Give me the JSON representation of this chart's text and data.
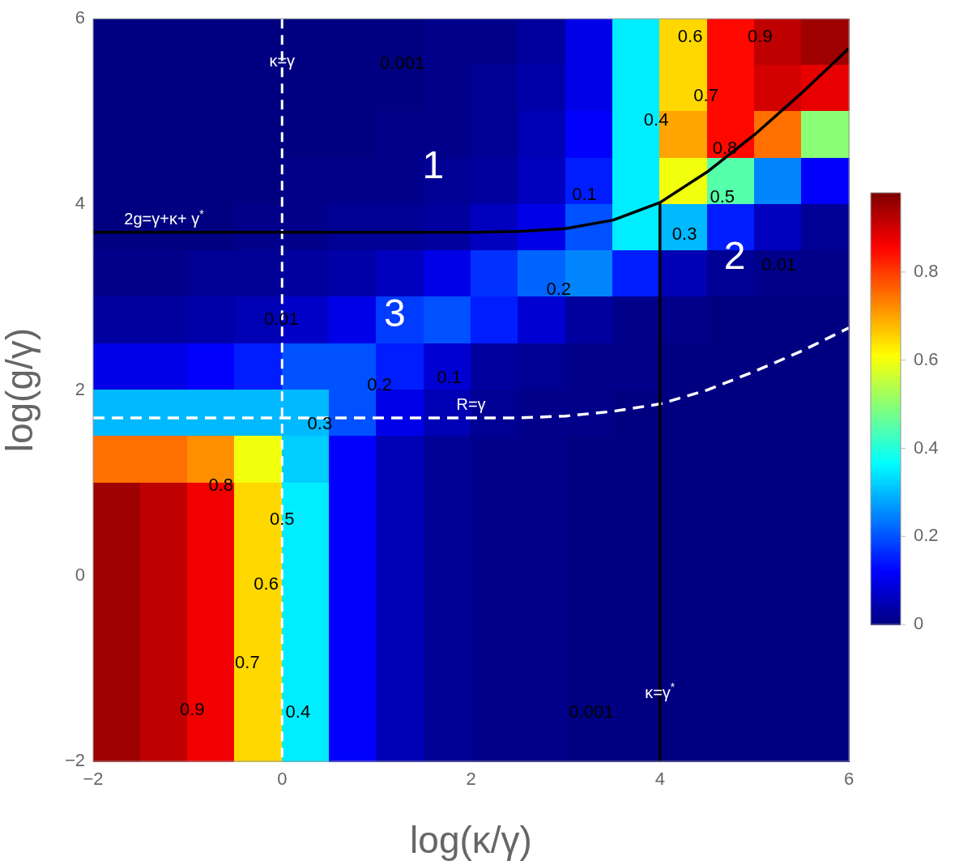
{
  "chart_data": {
    "type": "heatmap",
    "xlabel": "log(κ/γ)",
    "ylabel": "log(g/γ)",
    "x": [
      -1.75,
      -1.25,
      -0.75,
      -0.25,
      0.25,
      0.75,
      1.25,
      1.75,
      2.25,
      2.75,
      3.25,
      3.75,
      4.25,
      4.75,
      5.25,
      5.75
    ],
    "y": [
      5.75,
      5.25,
      4.75,
      4.25,
      3.75,
      3.25,
      2.75,
      2.25,
      1.75,
      1.25,
      0.75,
      0.25,
      -0.25,
      -0.75,
      -1.25,
      -1.75
    ],
    "xlim": [
      -2,
      6
    ],
    "xticks": [
      -2,
      0,
      2,
      4,
      6
    ],
    "ylim": [
      -2,
      6
    ],
    "yticks": [
      -2,
      0,
      2,
      4,
      6
    ],
    "clim": [
      0,
      0.98
    ],
    "cticks": [
      0,
      0.2,
      0.4,
      0.6,
      0.8
    ],
    "cells": [
      [
        0,
        0,
        0,
        0,
        0,
        0,
        0,
        0.01,
        0.01,
        0.03,
        0.1,
        0.35,
        0.65,
        0.85,
        0.92,
        0.95
      ],
      [
        0,
        0,
        0,
        0,
        0,
        0,
        0,
        0.01,
        0.02,
        0.04,
        0.1,
        0.35,
        0.65,
        0.85,
        0.9,
        0.88
      ],
      [
        0,
        0,
        0,
        0,
        0,
        0,
        0.01,
        0.01,
        0.02,
        0.05,
        0.12,
        0.35,
        0.7,
        0.85,
        0.75,
        0.5
      ],
      [
        0,
        0,
        0,
        0,
        0.01,
        0.01,
        0.01,
        0.02,
        0.03,
        0.06,
        0.15,
        0.35,
        0.6,
        0.45,
        0.25,
        0.12
      ],
      [
        0,
        0,
        0,
        0.01,
        0.01,
        0.02,
        0.02,
        0.03,
        0.06,
        0.1,
        0.2,
        0.35,
        0.3,
        0.15,
        0.06,
        0.02
      ],
      [
        0.01,
        0.01,
        0.02,
        0.02,
        0.03,
        0.04,
        0.06,
        0.1,
        0.17,
        0.22,
        0.25,
        0.15,
        0.05,
        0.02,
        0.01,
        0.01
      ],
      [
        0.03,
        0.03,
        0.04,
        0.05,
        0.07,
        0.1,
        0.18,
        0.2,
        0.15,
        0.08,
        0.03,
        0.01,
        0.01,
        0,
        0,
        0
      ],
      [
        0.1,
        0.1,
        0.12,
        0.15,
        0.2,
        0.2,
        0.15,
        0.08,
        0.03,
        0.02,
        0.01,
        0.01,
        0,
        0,
        0,
        0
      ],
      [
        0.3,
        0.3,
        0.3,
        0.3,
        0.3,
        0.2,
        0.1,
        0.05,
        0.02,
        0.01,
        0.01,
        0,
        0,
        0,
        0,
        0
      ],
      [
        0.75,
        0.75,
        0.72,
        0.6,
        0.32,
        0.12,
        0.05,
        0.02,
        0.01,
        0.01,
        0,
        0,
        0,
        0,
        0,
        0
      ],
      [
        0.95,
        0.92,
        0.87,
        0.65,
        0.35,
        0.12,
        0.05,
        0.02,
        0.01,
        0.01,
        0,
        0,
        0,
        0,
        0,
        0
      ],
      [
        0.95,
        0.92,
        0.87,
        0.65,
        0.35,
        0.12,
        0.05,
        0.02,
        0.01,
        0.01,
        0,
        0,
        0,
        0,
        0,
        0
      ],
      [
        0.95,
        0.92,
        0.87,
        0.65,
        0.35,
        0.12,
        0.05,
        0.02,
        0.01,
        0.01,
        0,
        0,
        0,
        0,
        0,
        0
      ],
      [
        0.95,
        0.92,
        0.87,
        0.65,
        0.35,
        0.12,
        0.05,
        0.02,
        0.01,
        0.01,
        0,
        0,
        0,
        0,
        0,
        0
      ],
      [
        0.95,
        0.92,
        0.87,
        0.65,
        0.35,
        0.12,
        0.05,
        0.02,
        0.01,
        0.01,
        0,
        0,
        0,
        0,
        0,
        0
      ],
      [
        0.95,
        0.92,
        0.87,
        0.65,
        0.35,
        0.12,
        0.05,
        0.02,
        0.01,
        0.01,
        0,
        0,
        0,
        0,
        0,
        0
      ]
    ],
    "series": [
      {
        "type": "line",
        "color": "#000000",
        "line_style": "solid",
        "x": [
          -2,
          -1.25,
          1,
          2,
          2.5,
          3,
          3.5,
          4,
          4.5,
          5,
          5.5,
          6
        ],
        "values": [
          3.7,
          3.7,
          3.7,
          3.7,
          3.71,
          3.74,
          3.83,
          4.02,
          4.35,
          4.75,
          5.2,
          5.68
        ]
      },
      {
        "type": "line",
        "color": "#000000",
        "line_style": "solid",
        "x": [
          4,
          4,
          4
        ],
        "values": [
          -2,
          -1.4,
          4.02
        ]
      },
      {
        "type": "line",
        "color": "#ffffff",
        "line_style": "dashed",
        "x": [
          -2,
          0,
          2,
          2.5,
          3,
          3.5,
          4,
          4.5,
          5,
          5.5,
          6
        ],
        "values": [
          1.7,
          1.7,
          1.7,
          1.7,
          1.72,
          1.77,
          1.85,
          2.0,
          2.2,
          2.42,
          2.67
        ]
      }
    ],
    "ref_lines": [
      {
        "axis": "x",
        "value": 0,
        "color": "#ffffff",
        "line_style": "dashed"
      }
    ],
    "annotations": [
      {
        "text": "κ=γ",
        "x": 0,
        "y": 5.4
      },
      {
        "text": "2g=γ+κ+ γ$^{*}$",
        "x": -1.25,
        "y": 3.7
      },
      {
        "text": "R=γ",
        "x": 2,
        "y": 1.7
      },
      {
        "text": "κ=γ$^{*}$",
        "x": 4,
        "y": -1.4
      },
      "1",
      "2",
      "3",
      "0.001",
      "0.6",
      "0.9",
      "0.7",
      "0.4",
      "0.8",
      "0.1",
      "0.5",
      "0.3",
      "0.01",
      "0.2",
      "0.01",
      "0.2",
      "0.1",
      "0.3",
      "0.8",
      "0.5",
      "0.6",
      "0.7",
      "0.9",
      "0.4",
      "0.001"
    ]
  }
}
